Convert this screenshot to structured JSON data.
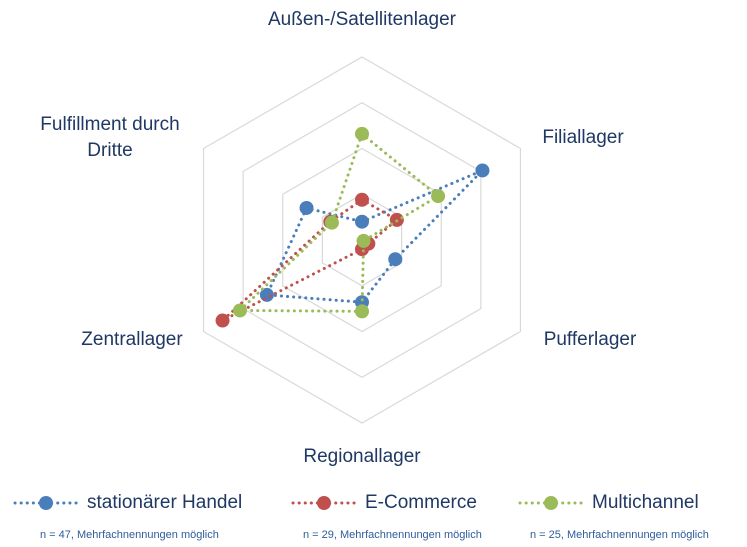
{
  "chart_data": {
    "type": "radar",
    "categories": [
      "Außen-/Satellitenlager",
      "Filiallager",
      "Pufferlager",
      "Regionallager",
      "Zentrallager",
      "Fulfillment durch Dritte"
    ],
    "rlim": [
      0,
      100
    ],
    "rticks": [
      25,
      50,
      75,
      100
    ],
    "grid": true,
    "legend": "bottom",
    "series": [
      {
        "name": "stationärer Handel",
        "color": "#4a7ebb",
        "values": [
          10,
          76,
          21,
          34,
          60,
          35
        ],
        "note": "n = 47, Mehrfachnennungen möglich"
      },
      {
        "name": "E-Commerce",
        "color": "#c0504d",
        "values": [
          22,
          22,
          4,
          5,
          88,
          20
        ],
        "note": "n = 29, Mehrfachnennungen möglich"
      },
      {
        "name": "Multichannel",
        "color": "#9bbb59",
        "values": [
          58,
          48,
          1,
          39,
          77,
          19
        ],
        "note": "n = 25, Mehrfachnennungen möglich"
      }
    ]
  }
}
